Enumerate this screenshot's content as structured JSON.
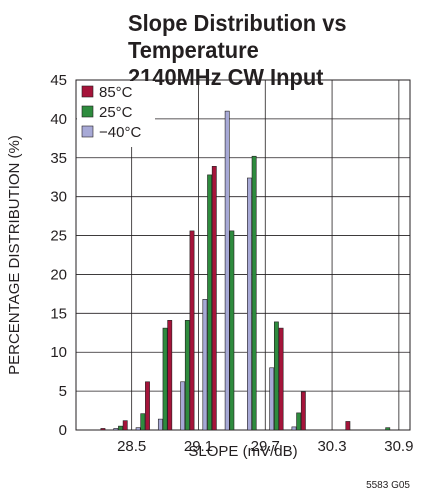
{
  "title_line1": "Slope Distribution vs Temperature",
  "title_line2": "2140MHz CW Input",
  "footnote": "5583 G05",
  "chart_data": {
    "type": "bar",
    "xlabel": "SLOPE (mV/dB)",
    "ylabel": "PERCENTAGE DISTRIBUTION (%)",
    "ylim": [
      0,
      45
    ],
    "yticks": [
      0,
      5,
      10,
      15,
      20,
      25,
      30,
      35,
      40,
      45
    ],
    "xlim": [
      28.0,
      31.0
    ],
    "xticks": [
      "28.5",
      "29.1",
      "29.7",
      "30.3",
      "30.9"
    ],
    "xtick_values": [
      28.5,
      29.1,
      29.7,
      30.3,
      30.9
    ],
    "grid": true,
    "legend_position": "top-left",
    "bin_width": 0.2,
    "bins": [
      28.2,
      28.4,
      28.6,
      28.8,
      29.0,
      29.2,
      29.4,
      29.6,
      29.8,
      30.0,
      30.2,
      30.4,
      30.6,
      30.8
    ],
    "series": [
      {
        "name": "−40°C",
        "color": "#a7a9d6",
        "values": [
          0.0,
          0.2,
          0.3,
          1.4,
          6.2,
          16.8,
          41.0,
          32.4,
          8.0,
          0.4,
          0.0,
          0.0,
          0.0,
          0.0
        ]
      },
      {
        "name": "25°C",
        "color": "#2e8b3e",
        "values": [
          0.0,
          0.5,
          2.1,
          13.1,
          14.1,
          32.8,
          25.6,
          35.2,
          13.9,
          2.2,
          0.0,
          0.0,
          0.0,
          0.3
        ]
      },
      {
        "name": "85°C",
        "color": "#a5143a",
        "values": [
          0.2,
          1.2,
          6.2,
          14.1,
          25.6,
          33.9,
          0.0,
          0.0,
          13.1,
          4.9,
          0.0,
          1.1,
          0.0,
          0.0
        ]
      }
    ],
    "legend_order": [
      "85°C",
      "25°C",
      "−40°C"
    ]
  }
}
